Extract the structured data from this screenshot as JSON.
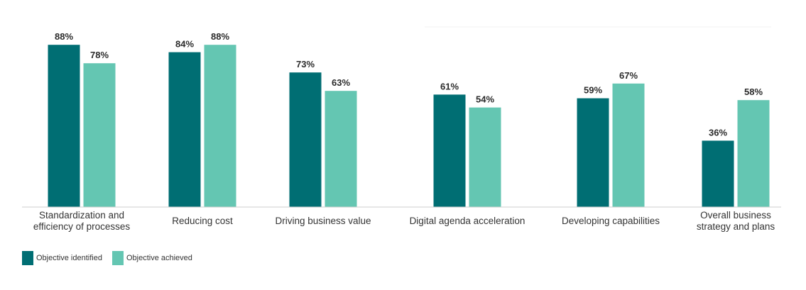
{
  "chart_data": {
    "type": "bar",
    "categories": [
      [
        "Standardization and",
        "efficiency of processes"
      ],
      [
        "Reducing cost"
      ],
      [
        "Driving business value"
      ],
      [
        "Digital agenda acceleration"
      ],
      [
        "Developing capabilities"
      ],
      [
        "Overall business",
        "strategy and plans"
      ]
    ],
    "series": [
      {
        "name": "Objective identified",
        "color": "#006e73",
        "values": [
          88,
          84,
          73,
          61,
          59,
          36
        ],
        "labels": [
          "88%",
          "84%",
          "73%",
          "61%",
          "59%",
          "36%"
        ]
      },
      {
        "name": "Objective achieved",
        "color": "#64c6b2",
        "values": [
          78,
          88,
          63,
          54,
          67,
          58
        ],
        "labels": [
          "78%",
          "88%",
          "63%",
          "54%",
          "67%",
          "58%"
        ]
      }
    ],
    "ylim": [
      0,
      100
    ],
    "title": "",
    "xlabel": "",
    "ylabel": "",
    "legend_position": "bottom-left",
    "grid": false
  },
  "legend": {
    "identified_label": "Objective identified",
    "achieved_label": "Objective achieved"
  }
}
